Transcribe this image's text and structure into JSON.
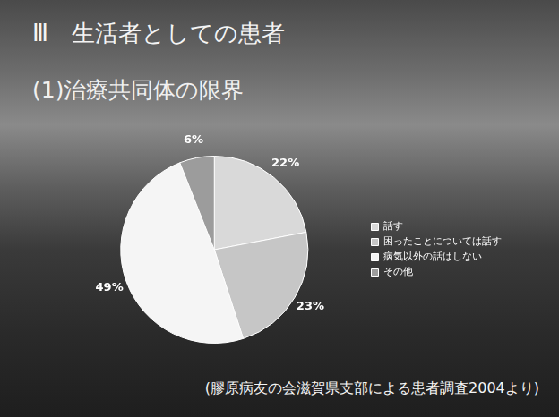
{
  "title": "Ⅲ　生活者としての患者",
  "subtitle": "(1)治療共同体の限界",
  "annotations": [
    "(膠原病友の会滋賀県支部による患者調査2004より)"
  ],
  "chart_data": {
    "type": "pie",
    "categories": [
      "話す",
      "困ったことについては話す",
      "病気以外の話はしない",
      "その他"
    ],
    "values": [
      22,
      23,
      49,
      6
    ],
    "value_labels": [
      "22%",
      "23%",
      "49%",
      "6%"
    ],
    "colors": [
      "#d9d9d9",
      "#c6c6c6",
      "#f5f5f5",
      "#9c9c9c"
    ],
    "data_labels": true,
    "legend": "right"
  }
}
